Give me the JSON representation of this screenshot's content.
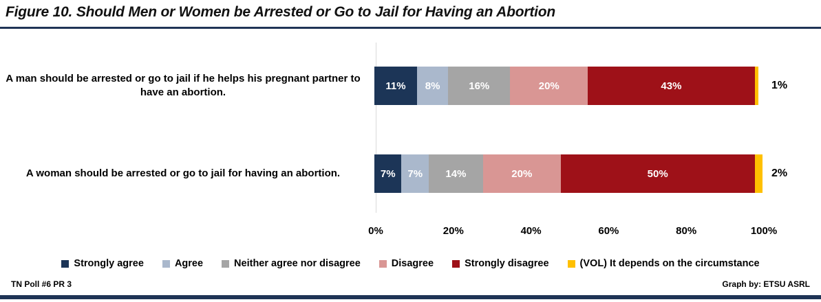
{
  "title": "Figure 10. Should Men or Women be Arrested or Go to Jail for Having an Abortion",
  "footer": {
    "left": "TN Poll #6 PR 3",
    "right": "Graph by: ETSU ASRL"
  },
  "colors": {
    "rule": "#1f3456",
    "gridline": "#d9d9d9",
    "strongly_agree": "#1c3557",
    "agree": "#aab8cc",
    "neither": "#a5a5a5",
    "disagree": "#d99694",
    "strongly_disagree": "#9e1118",
    "vol_depends": "#ffc000"
  },
  "chart_data": {
    "type": "bar",
    "orientation": "horizontal-stacked",
    "title": "Figure 10. Should Men or Women be Arrested or Go to Jail for Having an Abortion",
    "categories": [
      "A man should be arrested or go to jail if he helps his pregnant partner to have an abortion.",
      "A woman should be arrested or go to jail for having an abortion."
    ],
    "series": [
      {
        "name": "Strongly agree",
        "color": "#1c3557",
        "values": [
          11,
          7
        ]
      },
      {
        "name": "Agree",
        "color": "#aab8cc",
        "values": [
          8,
          7
        ]
      },
      {
        "name": "Neither agree nor disagree",
        "color": "#a5a5a5",
        "values": [
          16,
          14
        ]
      },
      {
        "name": "Disagree",
        "color": "#d99694",
        "values": [
          20,
          20
        ]
      },
      {
        "name": "Strongly disagree",
        "color": "#9e1118",
        "values": [
          43,
          50
        ]
      },
      {
        "name": "(VOL) It depends on the circumstance",
        "color": "#ffc000",
        "values": [
          1,
          2
        ],
        "label_outside": true
      }
    ],
    "x_ticks": [
      "0%",
      "20%",
      "40%",
      "60%",
      "80%",
      "100%"
    ],
    "xlim": [
      0,
      100
    ],
    "value_suffix": "%",
    "grid": "single-zero-line",
    "legend_position": "bottom"
  }
}
